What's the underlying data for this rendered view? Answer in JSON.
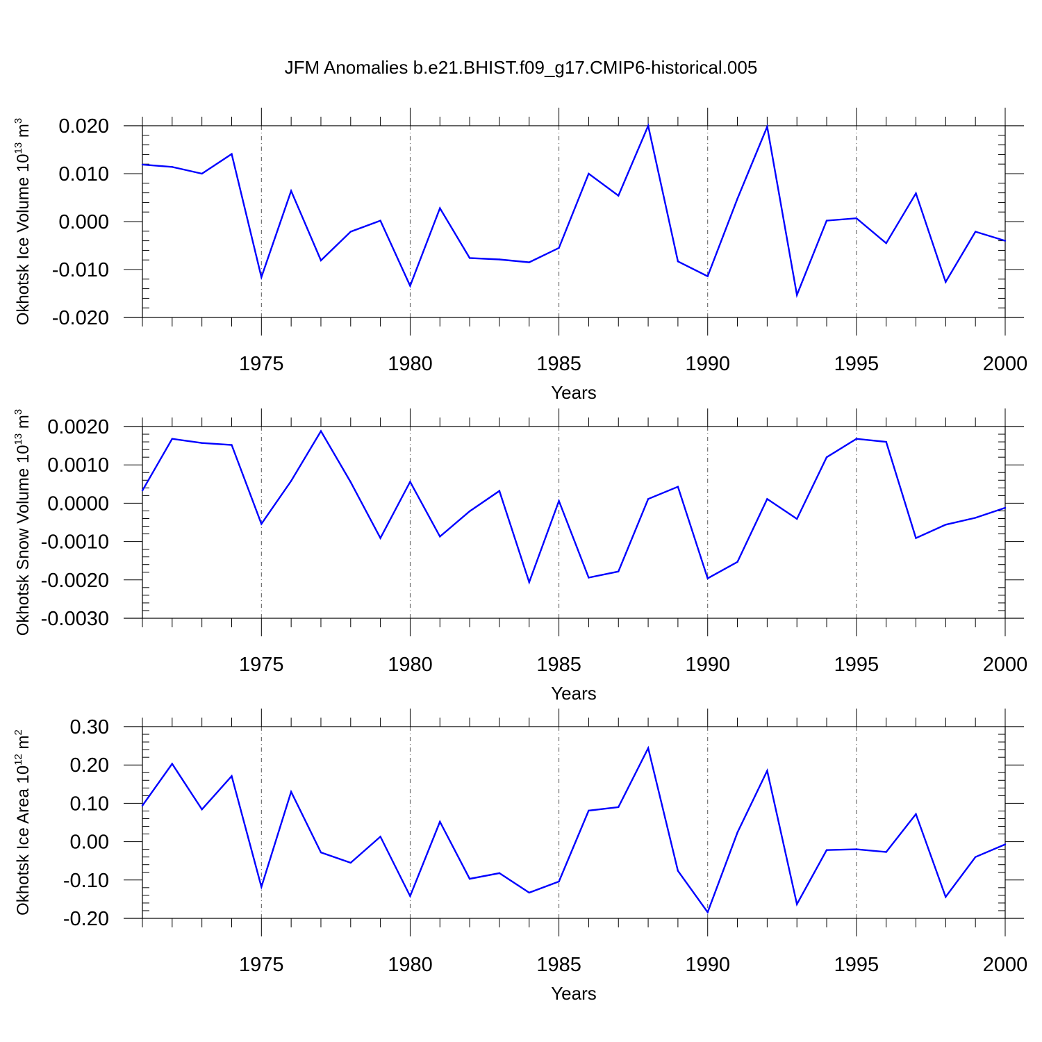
{
  "figure": {
    "title": "JFM Anomalies b.e21.BHIST.f09_g17.CMIP6-historical.005"
  },
  "style": {
    "line_color": "#0000ff",
    "axis_color": "#000000",
    "grid_color": "#555555"
  },
  "chart_data": [
    {
      "type": "line",
      "title": "",
      "xlabel": "Years",
      "ylabel": "Okhotsk Ice Volume 10",
      "ylabel_exp": "13",
      "ylabel_unit": " m",
      "ylabel_unit_exp": "3",
      "xlim": [
        1971,
        2000
      ],
      "ylim": [
        -0.02,
        0.02
      ],
      "y_ticks": [
        -0.02,
        -0.01,
        0.0,
        0.01,
        0.02
      ],
      "y_tick_labels": [
        "-0.020",
        "-0.010",
        "0.000",
        "0.010",
        "0.020"
      ],
      "x_ticks": [
        1975,
        1980,
        1985,
        1990,
        1995,
        2000
      ],
      "x_tick_labels": [
        "1975",
        "1980",
        "1985",
        "1990",
        "1995",
        "2000"
      ],
      "grid": "vertical dashed at major x ticks",
      "series": [
        {
          "name": "Okhotsk Ice Volume",
          "x": [
            1971,
            1972,
            1973,
            1974,
            1975,
            1976,
            1977,
            1978,
            1979,
            1980,
            1981,
            1982,
            1983,
            1984,
            1985,
            1986,
            1987,
            1988,
            1989,
            1990,
            1991,
            1992,
            1993,
            1994,
            1995,
            1996,
            1997,
            1998,
            1999,
            2000
          ],
          "values": [
            0.0119,
            0.0114,
            0.01,
            0.0141,
            -0.0116,
            0.0064,
            -0.0081,
            -0.0021,
            0.0002,
            -0.0134,
            0.0028,
            -0.0076,
            -0.0079,
            -0.0085,
            -0.0055,
            0.01,
            0.0054,
            0.02,
            -0.0083,
            -0.0114,
            0.0048,
            0.0198,
            -0.0153,
            0.0002,
            0.0007,
            -0.0045,
            0.0059,
            -0.0126,
            -0.0021,
            -0.004
          ]
        }
      ]
    },
    {
      "type": "line",
      "title": "",
      "xlabel": "Years",
      "ylabel": "Okhotsk Snow Volume 10",
      "ylabel_exp": "13",
      "ylabel_unit": " m",
      "ylabel_unit_exp": "3",
      "xlim": [
        1971,
        2000
      ],
      "ylim": [
        -0.003,
        0.002
      ],
      "y_ticks": [
        -0.003,
        -0.002,
        -0.001,
        0.0,
        0.001,
        0.002
      ],
      "y_tick_labels": [
        "-0.0030",
        "-0.0020",
        "-0.0010",
        "0.0000",
        "0.0010",
        "0.0020"
      ],
      "x_ticks": [
        1975,
        1980,
        1985,
        1990,
        1995,
        2000
      ],
      "x_tick_labels": [
        "1975",
        "1980",
        "1985",
        "1990",
        "1995",
        "2000"
      ],
      "grid": "vertical dashed at major x ticks",
      "series": [
        {
          "name": "Okhotsk Snow Volume",
          "x": [
            1971,
            1972,
            1973,
            1974,
            1975,
            1976,
            1977,
            1978,
            1979,
            1980,
            1981,
            1982,
            1983,
            1984,
            1985,
            1986,
            1987,
            1988,
            1989,
            1990,
            1991,
            1992,
            1993,
            1994,
            1995,
            1996,
            1997,
            1998,
            1999,
            2000
          ],
          "values": [
            0.00033,
            0.00168,
            0.00157,
            0.00152,
            -0.00054,
            0.00058,
            0.00188,
            0.00055,
            -0.00091,
            0.00056,
            -0.00087,
            -0.00021,
            0.00032,
            -0.00206,
            6e-05,
            -0.00194,
            -0.00178,
            0.00011,
            0.00043,
            -0.00196,
            -0.00153,
            0.00011,
            -0.00041,
            0.0012,
            0.00168,
            0.0016,
            -0.00091,
            -0.00056,
            -0.00038,
            -0.00012
          ]
        }
      ]
    },
    {
      "type": "line",
      "title": "",
      "xlabel": "Years",
      "ylabel": "Okhotsk Ice Area 10",
      "ylabel_exp": "12",
      "ylabel_unit": " m",
      "ylabel_unit_exp": "2",
      "xlim": [
        1971,
        2000
      ],
      "ylim": [
        -0.2,
        0.3
      ],
      "y_ticks": [
        -0.2,
        -0.1,
        0.0,
        0.1,
        0.2,
        0.3
      ],
      "y_tick_labels": [
        "-0.20",
        "-0.10",
        "0.00",
        "0.10",
        "0.20",
        "0.30"
      ],
      "x_ticks": [
        1975,
        1980,
        1985,
        1990,
        1995,
        2000
      ],
      "x_tick_labels": [
        "1975",
        "1980",
        "1985",
        "1990",
        "1995",
        "2000"
      ],
      "grid": "vertical dashed at major x ticks",
      "series": [
        {
          "name": "Okhotsk Ice Area",
          "x": [
            1971,
            1972,
            1973,
            1974,
            1975,
            1976,
            1977,
            1978,
            1979,
            1980,
            1981,
            1982,
            1983,
            1984,
            1985,
            1986,
            1987,
            1988,
            1989,
            1990,
            1991,
            1992,
            1993,
            1994,
            1995,
            1996,
            1997,
            1998,
            1999,
            2000
          ],
          "values": [
            0.094,
            0.203,
            0.084,
            0.171,
            -0.118,
            0.13,
            -0.028,
            -0.055,
            0.013,
            -0.142,
            0.052,
            -0.097,
            -0.082,
            -0.133,
            -0.104,
            0.081,
            0.09,
            0.244,
            -0.076,
            -0.184,
            0.024,
            0.185,
            -0.163,
            -0.022,
            -0.02,
            -0.027,
            0.072,
            -0.144,
            -0.04,
            -0.007
          ]
        }
      ]
    }
  ]
}
